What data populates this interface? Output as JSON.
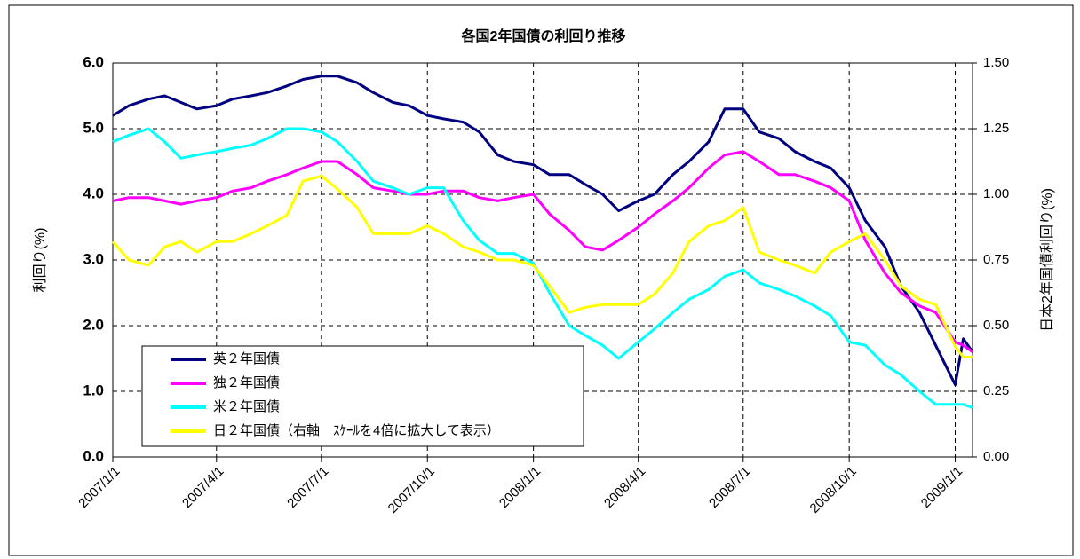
{
  "chart_data": {
    "type": "line",
    "title": "各国2年国債の利回り推移",
    "y_label": "利回り(%)",
    "y2_label": "日本2年国債利回り(%)",
    "x": [
      "2007/1/1",
      "2007/1/15",
      "2007/2/1",
      "2007/2/15",
      "2007/3/1",
      "2007/3/15",
      "2007/4/1",
      "2007/4/15",
      "2007/5/1",
      "2007/5/15",
      "2007/6/1",
      "2007/6/15",
      "2007/7/1",
      "2007/7/15",
      "2007/8/1",
      "2007/8/15",
      "2007/9/1",
      "2007/9/15",
      "2007/10/1",
      "2007/10/15",
      "2007/11/1",
      "2007/11/15",
      "2007/12/1",
      "2007/12/15",
      "2008/1/1",
      "2008/1/15",
      "2008/2/1",
      "2008/2/15",
      "2008/3/1",
      "2008/3/15",
      "2008/4/1",
      "2008/4/15",
      "2008/5/1",
      "2008/5/15",
      "2008/6/1",
      "2008/6/15",
      "2008/7/1",
      "2008/7/15",
      "2008/8/1",
      "2008/8/15",
      "2008/9/1",
      "2008/9/15",
      "2008/10/1",
      "2008/10/15",
      "2008/11/1",
      "2008/11/15",
      "2008/12/1",
      "2008/12/15",
      "2009/1/1",
      "2009/1/8",
      "2009/1/16"
    ],
    "series": [
      {
        "name": "英２年国債",
        "color": "#000080",
        "values": [
          5.2,
          5.35,
          5.45,
          5.5,
          5.4,
          5.3,
          5.35,
          5.45,
          5.5,
          5.55,
          5.65,
          5.75,
          5.8,
          5.8,
          5.7,
          5.55,
          5.4,
          5.35,
          5.2,
          5.15,
          5.1,
          4.95,
          4.6,
          4.5,
          4.45,
          4.3,
          4.3,
          4.15,
          4.0,
          3.75,
          3.9,
          4.0,
          4.3,
          4.5,
          4.8,
          5.3,
          5.3,
          4.95,
          4.85,
          4.65,
          4.5,
          4.4,
          4.1,
          3.6,
          3.2,
          2.6,
          2.2,
          1.7,
          1.1,
          1.8,
          1.6
        ]
      },
      {
        "name": "独２年国債",
        "color": "#ff00ff",
        "values": [
          3.9,
          3.95,
          3.95,
          3.9,
          3.85,
          3.9,
          3.95,
          4.05,
          4.1,
          4.2,
          4.3,
          4.4,
          4.5,
          4.5,
          4.3,
          4.1,
          4.05,
          4.0,
          4.0,
          4.05,
          4.05,
          3.95,
          3.9,
          3.95,
          4.0,
          3.7,
          3.45,
          3.2,
          3.15,
          3.3,
          3.5,
          3.7,
          3.9,
          4.1,
          4.4,
          4.6,
          4.65,
          4.5,
          4.3,
          4.3,
          4.2,
          4.1,
          3.9,
          3.3,
          2.8,
          2.5,
          2.3,
          2.2,
          1.75,
          1.7,
          1.6
        ]
      },
      {
        "name": "米２年国債",
        "color": "#00ffff",
        "values": [
          4.8,
          4.9,
          5.0,
          4.8,
          4.55,
          4.6,
          4.65,
          4.7,
          4.75,
          4.85,
          5.0,
          5.0,
          4.95,
          4.8,
          4.5,
          4.2,
          4.1,
          4.0,
          4.1,
          4.1,
          3.6,
          3.3,
          3.1,
          3.1,
          2.95,
          2.5,
          2.0,
          1.85,
          1.7,
          1.5,
          1.75,
          1.95,
          2.2,
          2.4,
          2.55,
          2.75,
          2.85,
          2.65,
          2.55,
          2.45,
          2.3,
          2.15,
          1.75,
          1.7,
          1.4,
          1.25,
          1.0,
          0.8,
          0.8,
          0.8,
          0.75
        ]
      },
      {
        "name": "日２年国債（右軸　ｽｹｰﾙを4倍に拡大して表示）",
        "color": "#ffff00",
        "axis": "y2",
        "values": [
          0.82,
          0.75,
          0.73,
          0.8,
          0.82,
          0.78,
          0.82,
          0.82,
          0.85,
          0.88,
          0.92,
          1.05,
          1.07,
          1.02,
          0.95,
          0.85,
          0.85,
          0.85,
          0.88,
          0.85,
          0.8,
          0.78,
          0.75,
          0.75,
          0.73,
          0.65,
          0.55,
          0.57,
          0.58,
          0.58,
          0.58,
          0.62,
          0.7,
          0.82,
          0.88,
          0.9,
          0.95,
          0.78,
          0.75,
          0.73,
          0.7,
          0.78,
          0.82,
          0.85,
          0.75,
          0.65,
          0.6,
          0.58,
          0.42,
          0.38,
          0.38
        ]
      }
    ],
    "xlim": [
      "2007/1/1",
      "2009/1/16"
    ],
    "xticks": [
      "2007/1/1",
      "2007/4/1",
      "2007/7/1",
      "2007/10/1",
      "2008/1/1",
      "2008/4/1",
      "2008/7/1",
      "2008/10/1",
      "2009/1/1"
    ],
    "ylim": [
      0,
      6
    ],
    "yticks": [
      {
        "value": 0,
        "label": "0.0"
      },
      {
        "value": 1,
        "label": "1.0"
      },
      {
        "value": 2,
        "label": "2.0"
      },
      {
        "value": 3,
        "label": "3.0"
      },
      {
        "value": 4,
        "label": "4.0"
      },
      {
        "value": 5,
        "label": "5.0"
      },
      {
        "value": 6,
        "label": "6.0"
      }
    ],
    "y2lim": [
      0,
      1.5
    ],
    "y2ticks": [
      {
        "value": 0,
        "label": "0.00"
      },
      {
        "value": 0.25,
        "label": "0.25"
      },
      {
        "value": 0.5,
        "label": "0.50"
      },
      {
        "value": 0.75,
        "label": "0.75"
      },
      {
        "value": 1,
        "label": "1.00"
      },
      {
        "value": 1.25,
        "label": "1.25"
      },
      {
        "value": 1.5,
        "label": "1.50"
      }
    ],
    "grid": true,
    "legend": "lower left"
  }
}
